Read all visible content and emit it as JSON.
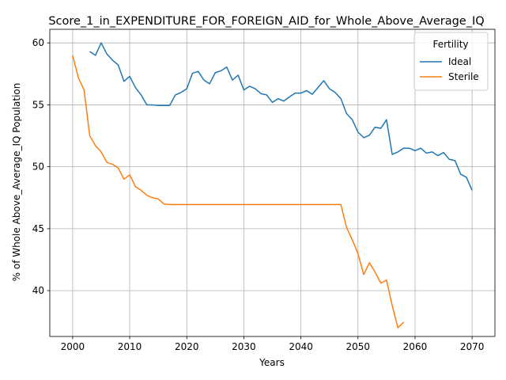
{
  "chart_data": {
    "type": "line",
    "title": "Score_1_in_EXPENDITURE_FOR_FOREIGN_AID_for_Whole_Above_Average_IQ",
    "xlabel": "Years",
    "ylabel": "% of Whole Above_Average_IQ Population",
    "xlim": [
      1996,
      2074
    ],
    "ylim": [
      36.3,
      61.1
    ],
    "xticks": [
      2000,
      2010,
      2020,
      2030,
      2040,
      2050,
      2060,
      2070
    ],
    "yticks": [
      40,
      45,
      50,
      55,
      60
    ],
    "grid": true,
    "legend": {
      "title": "Fertility",
      "placement": "top-right"
    },
    "series": [
      {
        "name": "Ideal",
        "color": "#1f77b4",
        "x": [
          2003,
          2004,
          2005,
          2006,
          2007,
          2008,
          2009,
          2010,
          2011,
          2012,
          2013,
          2014,
          2015,
          2016,
          2017,
          2018,
          2019,
          2020,
          2021,
          2022,
          2023,
          2024,
          2025,
          2026,
          2027,
          2028,
          2029,
          2030,
          2031,
          2032,
          2033,
          2034,
          2035,
          2036,
          2037,
          2038,
          2039,
          2040,
          2041,
          2042,
          2043,
          2044,
          2045,
          2046,
          2047,
          2048,
          2049,
          2050,
          2051,
          2052,
          2053,
          2054,
          2055,
          2056,
          2057,
          2058,
          2059,
          2060,
          2061,
          2062,
          2063,
          2064,
          2065,
          2066,
          2067,
          2068,
          2069,
          2070
        ],
        "values": [
          59.3,
          59.0,
          60.0,
          59.1,
          58.6,
          58.2,
          56.9,
          57.3,
          56.4,
          55.8,
          55.0,
          55.0,
          54.95,
          54.95,
          54.95,
          55.8,
          56.0,
          56.3,
          57.55,
          57.7,
          57.0,
          56.7,
          57.6,
          57.75,
          58.05,
          57.0,
          57.4,
          56.2,
          56.5,
          56.3,
          55.9,
          55.8,
          55.2,
          55.5,
          55.3,
          55.65,
          55.95,
          55.95,
          56.15,
          55.85,
          56.4,
          56.95,
          56.3,
          56.0,
          55.5,
          54.3,
          53.8,
          52.8,
          52.35,
          52.55,
          53.2,
          53.1,
          53.8,
          51.0,
          51.2,
          51.5,
          51.5,
          51.3,
          51.5,
          51.1,
          51.2,
          50.9,
          51.15,
          50.6,
          50.5,
          49.4,
          49.15,
          48.1
        ]
      },
      {
        "name": "Sterile",
        "color": "#ff7f0e",
        "x": [
          2000,
          2001,
          2002,
          2003,
          2004,
          2005,
          2006,
          2007,
          2008,
          2009,
          2010,
          2011,
          2012,
          2013,
          2014,
          2015,
          2016,
          2017,
          2018,
          2019,
          2020,
          2021,
          2022,
          2023,
          2024,
          2025,
          2026,
          2027,
          2028,
          2029,
          2030,
          2031,
          2032,
          2033,
          2034,
          2035,
          2036,
          2037,
          2038,
          2039,
          2040,
          2041,
          2042,
          2043,
          2044,
          2045,
          2046,
          2047,
          2048,
          2049,
          2050,
          2051,
          2052,
          2053,
          2054,
          2055,
          2056,
          2057,
          2058
        ],
        "values": [
          59.0,
          57.2,
          56.2,
          52.5,
          51.7,
          51.2,
          50.35,
          50.2,
          49.9,
          49.0,
          49.35,
          48.4,
          48.1,
          47.7,
          47.5,
          47.4,
          47.0,
          46.95,
          46.95,
          46.95,
          46.95,
          46.95,
          46.95,
          46.95,
          46.95,
          46.95,
          46.95,
          46.95,
          46.95,
          46.95,
          46.95,
          46.95,
          46.95,
          46.95,
          46.95,
          46.95,
          46.95,
          46.95,
          46.95,
          46.95,
          46.95,
          46.95,
          46.95,
          46.95,
          46.95,
          46.95,
          46.95,
          46.95,
          45.1,
          44.1,
          43.0,
          41.3,
          42.25,
          41.5,
          40.6,
          40.85,
          38.8,
          37.0,
          37.45
        ]
      }
    ]
  }
}
